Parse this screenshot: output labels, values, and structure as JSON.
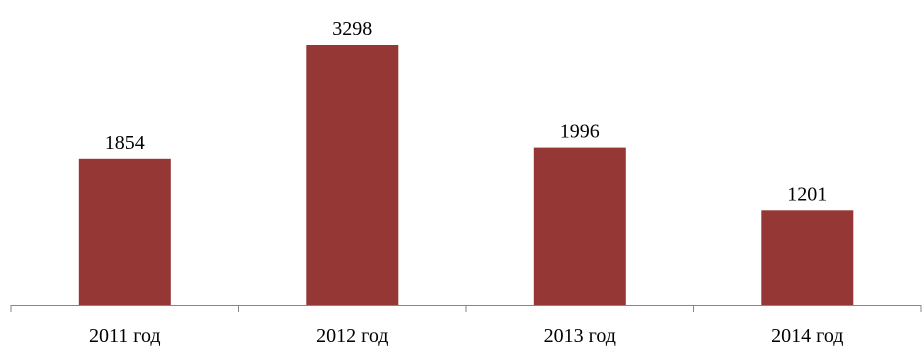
{
  "chart_data": {
    "type": "bar",
    "categories": [
      "2011 год",
      "2012 год",
      "2013 год",
      "2014 год"
    ],
    "values": [
      1854,
      3298,
      1996,
      1201
    ],
    "data_labels": [
      "1854",
      "3298",
      "1996",
      "1201"
    ],
    "title": "",
    "xlabel": "",
    "ylabel": "",
    "ylim": [
      0,
      3500
    ],
    "y_axis_visible": false,
    "grid": false,
    "legend": "none",
    "colors": {
      "bar": "#953735",
      "axis": "#868686",
      "text": "#000000"
    }
  }
}
